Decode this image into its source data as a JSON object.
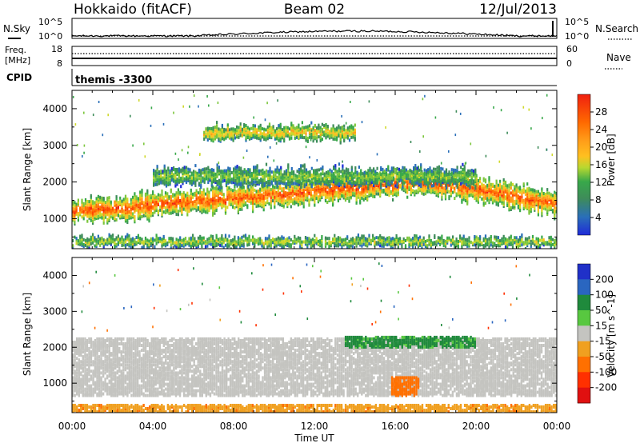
{
  "header": {
    "station": "Hokkaido (fitACF)",
    "beam": "Beam 02",
    "date": "12/Jul/2013"
  },
  "top_panels": {
    "nsky_label": "N.Sky",
    "nsearch_label": "N.Search",
    "count_ticks": [
      "10^5",
      "10^0"
    ],
    "freq_label_1": "Freq.",
    "freq_label_2": "[MHz]",
    "freq_ticks": [
      "18",
      "8"
    ],
    "nave_label": "Nave",
    "nave_ticks": [
      "60",
      "0"
    ],
    "cpid_label": "CPID",
    "cpid_value": "themis -3300"
  },
  "chart_data": [
    {
      "type": "heatmap",
      "title": "",
      "xlabel": "",
      "ylabel": "Slant Range [km]",
      "xlim": [
        "00:00",
        "24:00"
      ],
      "ylim": [
        180,
        4500
      ],
      "x_tick_labels": [
        "00:00",
        "04:00",
        "08:00",
        "12:00",
        "16:00",
        "20:00",
        "00:00"
      ],
      "y_tick_labels": [
        "1000",
        "2000",
        "3000",
        "4000"
      ],
      "colorbar": {
        "label": "Power [dB]",
        "ticks": [
          "4",
          "8",
          "12",
          "16",
          "20",
          "24",
          "28"
        ],
        "range": [
          0,
          32
        ],
        "colors": [
          "#1f2bd8",
          "#2a6fb8",
          "#3e8c5a",
          "#38a84a",
          "#7cc63c",
          "#cfd828",
          "#ffc020",
          "#ff9a18",
          "#ff7000",
          "#ff4800",
          "#f02010"
        ]
      },
      "bands": [
        {
          "name": "main echo band",
          "t_start": 0,
          "t_end": 24,
          "range_center": [
            1250,
            1400,
            1550,
            1700,
            1900,
            2050,
            1800,
            1450
          ],
          "width_km": 650,
          "peak_db": 28
        },
        {
          "name": "near-range echoes",
          "t_start": 0,
          "t_end": 24,
          "range_center": [
            420
          ],
          "width_km": 260,
          "peak_db": 16
        },
        {
          "name": "upper patches",
          "t_start": 4,
          "t_end": 20,
          "range_center": [
            2200
          ],
          "width_km": 500,
          "peak_db": 14
        },
        {
          "name": "high-range bursts",
          "t_start": 6.5,
          "t_end": 14,
          "range_center": [
            3400
          ],
          "width_km": 400,
          "peak_db": 20
        }
      ]
    },
    {
      "type": "heatmap",
      "title": "",
      "xlabel": "Time UT",
      "ylabel": "Slant Range [km]",
      "xlim": [
        "00:00",
        "24:00"
      ],
      "ylim": [
        180,
        4500
      ],
      "x_tick_labels": [
        "00:00",
        "04:00",
        "08:00",
        "12:00",
        "16:00",
        "20:00",
        "00:00"
      ],
      "y_tick_labels": [
        "1000",
        "2000",
        "3000",
        "4000"
      ],
      "colorbar": {
        "label": "Velocity [m s^-1]",
        "ticks": [
          "200",
          "100",
          "50",
          "15",
          "-15",
          "-50",
          "-100",
          "-200"
        ],
        "range": [
          -250,
          250
        ],
        "colors": [
          "#2030c8",
          "#2a66c0",
          "#1f8a3c",
          "#58c840",
          "#c4c4c0",
          "#f0a020",
          "#ff7000",
          "#ff3000",
          "#e01010"
        ]
      },
      "features": [
        {
          "name": "ground scatter band",
          "velocity_ms": 0,
          "t_start": 0,
          "t_end": 24,
          "range_km": [
            700,
            2300
          ]
        },
        {
          "name": "positive velocity patch",
          "velocity_ms": 60,
          "t_start": 13.5,
          "t_end": 20,
          "range_km": [
            2050,
            2350
          ]
        },
        {
          "name": "negative velocity patch",
          "velocity_ms": -80,
          "t_start": 15.8,
          "t_end": 17.2,
          "range_km": [
            700,
            1200
          ]
        },
        {
          "name": "near-range mixed echoes",
          "velocity_ms": -40,
          "t_start": 0,
          "t_end": 24,
          "range_km": [
            200,
            450
          ]
        }
      ]
    }
  ]
}
